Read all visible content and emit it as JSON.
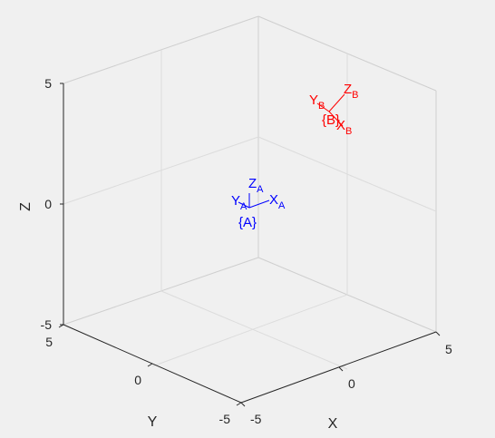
{
  "figure": {
    "background": "#f0f0f0",
    "axes": {
      "xlabel": "X",
      "ylabel": "Y",
      "zlabel": "Z",
      "x_ticks": [
        "-5",
        "0",
        "5"
      ],
      "y_ticks": [
        "-5",
        "0",
        "5"
      ],
      "z_ticks": [
        "-5",
        "0",
        "5"
      ],
      "xlim": [
        -5,
        5
      ],
      "ylim": [
        -5,
        5
      ],
      "zlim": [
        -5,
        5
      ],
      "grid": true
    },
    "frames": [
      {
        "name": "{A}",
        "color": "#0000ff",
        "x_label": "X",
        "x_sub": "A",
        "y_label": "Y",
        "y_sub": "A",
        "z_label": "Z",
        "z_sub": "A"
      },
      {
        "name": "{B}",
        "color": "#ff0000",
        "x_label": "X",
        "x_sub": "B",
        "y_label": "Y",
        "y_sub": "B",
        "z_label": "Z",
        "z_sub": "B"
      }
    ]
  }
}
